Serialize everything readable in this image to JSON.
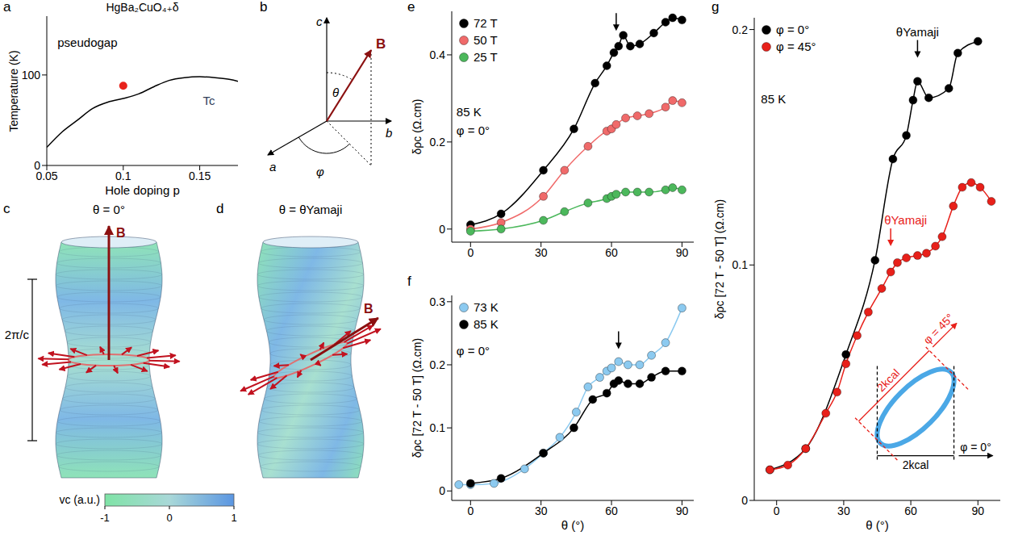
{
  "chart_data": [
    {
      "panel": "a",
      "type": "line",
      "title": "HgBa₂CuO₄₊δ",
      "x_label": "Hole doping p",
      "y_label": "Temperature (K)",
      "xlim": [
        0.05,
        0.175
      ],
      "xticks": [
        0.05,
        0.1,
        0.15
      ],
      "ylim": [
        0,
        165
      ],
      "yticks": [
        0,
        100
      ],
      "series": [
        {
          "color": "#000000",
          "marker": "none",
          "line_style": "solid",
          "x": [
            0.05,
            0.06,
            0.07,
            0.08,
            0.09,
            0.1,
            0.11,
            0.12,
            0.13,
            0.14,
            0.15,
            0.16,
            0.17,
            0.175
          ],
          "values": [
            20,
            37,
            50,
            63,
            70,
            74,
            79,
            87,
            94,
            97,
            98,
            97,
            95,
            93
          ]
        }
      ],
      "markers": [
        {
          "x": 0.1,
          "y": 88,
          "color": "#e8231c"
        }
      ],
      "annotations": [
        {
          "text": "pseudogap",
          "x": 0.057,
          "y": 135
        },
        {
          "text": "Tc",
          "x": 0.152,
          "y": 70,
          "color": "#33425a"
        }
      ]
    },
    {
      "panel": "e",
      "type": "line",
      "y_label": "δρc (Ω.cm)",
      "xlim": [
        -8,
        95
      ],
      "xticks": [
        0,
        30,
        60,
        90
      ],
      "ylim": [
        -0.03,
        0.5
      ],
      "yticks": [
        0,
        0.2,
        0.4
      ],
      "legend": "upper left",
      "series": [
        {
          "name": "72 T",
          "color": "#000000",
          "marker": "circle",
          "line_style": "solid",
          "x": [
            0,
            13,
            31,
            44,
            53,
            58,
            61,
            63,
            65,
            68,
            72,
            78,
            83,
            86,
            90
          ],
          "values": [
            0.01,
            0.035,
            0.135,
            0.23,
            0.335,
            0.375,
            0.405,
            0.42,
            0.445,
            0.42,
            0.425,
            0.45,
            0.475,
            0.485,
            0.48
          ]
        },
        {
          "name": "50 T",
          "color": "#f06a6a",
          "marker": "circle",
          "line_style": "solid",
          "x": [
            0,
            13,
            31,
            40,
            50,
            58,
            60,
            62,
            66,
            71,
            76,
            83,
            86,
            90
          ],
          "values": [
            0,
            0.015,
            0.075,
            0.135,
            0.19,
            0.225,
            0.23,
            0.24,
            0.255,
            0.26,
            0.265,
            0.28,
            0.295,
            0.29
          ]
        },
        {
          "name": "25 T",
          "color": "#4cb85c",
          "marker": "circle",
          "line_style": "solid",
          "x": [
            0,
            13,
            31,
            40,
            50,
            58,
            60,
            62,
            66,
            71,
            76,
            83,
            86,
            90
          ],
          "values": [
            -0.005,
            0,
            0.02,
            0.04,
            0.06,
            0.07,
            0.075,
            0.08,
            0.085,
            0.085,
            0.085,
            0.09,
            0.095,
            0.09
          ]
        }
      ],
      "annotations": [
        {
          "text": "85 K",
          "x": -6,
          "y": 0.267
        },
        {
          "text": "φ = 0°",
          "x": -6,
          "y": 0.224
        }
      ],
      "arrows": [
        {
          "x": 62,
          "y": 0.455
        }
      ]
    },
    {
      "panel": "f",
      "type": "line",
      "x_label": "θ (°)",
      "y_label": "δρc [72 T - 50 T] (Ω.cm)",
      "xlim": [
        -8,
        95
      ],
      "xticks": [
        0,
        30,
        60,
        90
      ],
      "ylim": [
        -0.015,
        0.31
      ],
      "yticks": [
        0,
        0.1,
        0.2,
        0.3
      ],
      "legend": "upper left",
      "series": [
        {
          "name": "73 K",
          "color": "#8ccaf0",
          "marker": "circle",
          "line_style": "solid",
          "x": [
            -5,
            0,
            10,
            23,
            31,
            38,
            45,
            50,
            55,
            58,
            60,
            63,
            67,
            72,
            77,
            83,
            90
          ],
          "values": [
            0.01,
            0.01,
            0.012,
            0.035,
            0.06,
            0.085,
            0.125,
            0.165,
            0.18,
            0.19,
            0.195,
            0.205,
            0.2,
            0.2,
            0.215,
            0.235,
            0.29
          ]
        },
        {
          "name": "85 K",
          "color": "#000000",
          "marker": "circle",
          "line_style": "solid",
          "x": [
            0,
            13,
            31,
            44,
            52,
            58,
            61,
            63,
            67,
            72,
            77,
            83,
            90
          ],
          "values": [
            0.012,
            0.02,
            0.06,
            0.1,
            0.145,
            0.155,
            0.17,
            0.175,
            0.17,
            0.17,
            0.18,
            0.19,
            0.19
          ]
        }
      ],
      "annotations": [
        {
          "text": "φ = 0°",
          "x": -6,
          "y": 0.22
        }
      ],
      "arrows": [
        {
          "x": 63,
          "y": 0.225
        }
      ]
    },
    {
      "panel": "g",
      "type": "line",
      "x_label": "θ (°)",
      "y_label": "δρc [72 T - 50 T] (Ω.cm)",
      "xlim": [
        -10,
        100
      ],
      "xticks": [
        0,
        30,
        60,
        90
      ],
      "ylim": [
        0,
        0.205
      ],
      "yticks": [
        0,
        0.1,
        0.2
      ],
      "legend": "upper left",
      "series": [
        {
          "name": "φ = 0°",
          "color": "#000000",
          "marker": "circle",
          "line_style": "solid",
          "x": [
            -3,
            13,
            31,
            44,
            52,
            58,
            61,
            63,
            68,
            77,
            81,
            90
          ],
          "values": [
            0.013,
            0.022,
            0.062,
            0.102,
            0.145,
            0.155,
            0.17,
            0.178,
            0.171,
            0.175,
            0.19,
            0.195
          ]
        },
        {
          "name": "φ = 45°",
          "color": "#e8201a",
          "marker": "circle",
          "line_style": "solid",
          "x": [
            -3,
            5,
            13,
            22,
            27,
            31,
            36,
            41,
            47,
            51,
            54,
            58,
            63,
            67,
            71,
            74,
            79,
            83,
            87,
            91,
            96
          ],
          "values": [
            0.013,
            0.015,
            0.022,
            0.037,
            0.046,
            0.058,
            0.07,
            0.08,
            0.09,
            0.097,
            0.101,
            0.103,
            0.104,
            0.105,
            0.108,
            0.112,
            0.125,
            0.133,
            0.135,
            0.133,
            0.127
          ]
        }
      ],
      "annotations": [
        {
          "text": "85 K",
          "x": -7,
          "y": 0.17
        }
      ],
      "arrows": [
        {
          "x": 63,
          "y": 0.188,
          "text": "θYamaji",
          "color": "#000000"
        },
        {
          "x": 51,
          "y": 0.108,
          "text": "θYamaji",
          "color": "#e8201a"
        }
      ],
      "inset": {
        "shape_color": "#4ba8e6",
        "calipers": [
          {
            "phi": 0,
            "label": "φ = 0°",
            "width_label": "2kcal",
            "color": "#000000"
          },
          {
            "phi": 45,
            "label": "φ = 45°",
            "width_label": "2kcal",
            "color": "#e8201a"
          }
        ]
      }
    }
  ],
  "diagrams": {
    "b": {
      "axis_labels": [
        "a",
        "b",
        "c"
      ],
      "vector": "B",
      "polar_angle": "θ",
      "azimuthal_angle": "φ"
    },
    "c": {
      "title": "θ = 0°",
      "vector": "B",
      "period_label": "2π/c"
    },
    "d": {
      "title": "θ = θYamaji",
      "vector": "B"
    },
    "colorbar": {
      "label": "vc (a.u.)",
      "range": [
        -1,
        1
      ],
      "ticks": [
        -1,
        0,
        1
      ]
    }
  },
  "panel_letters": [
    "a",
    "b",
    "c",
    "d",
    "e",
    "f",
    "g"
  ]
}
